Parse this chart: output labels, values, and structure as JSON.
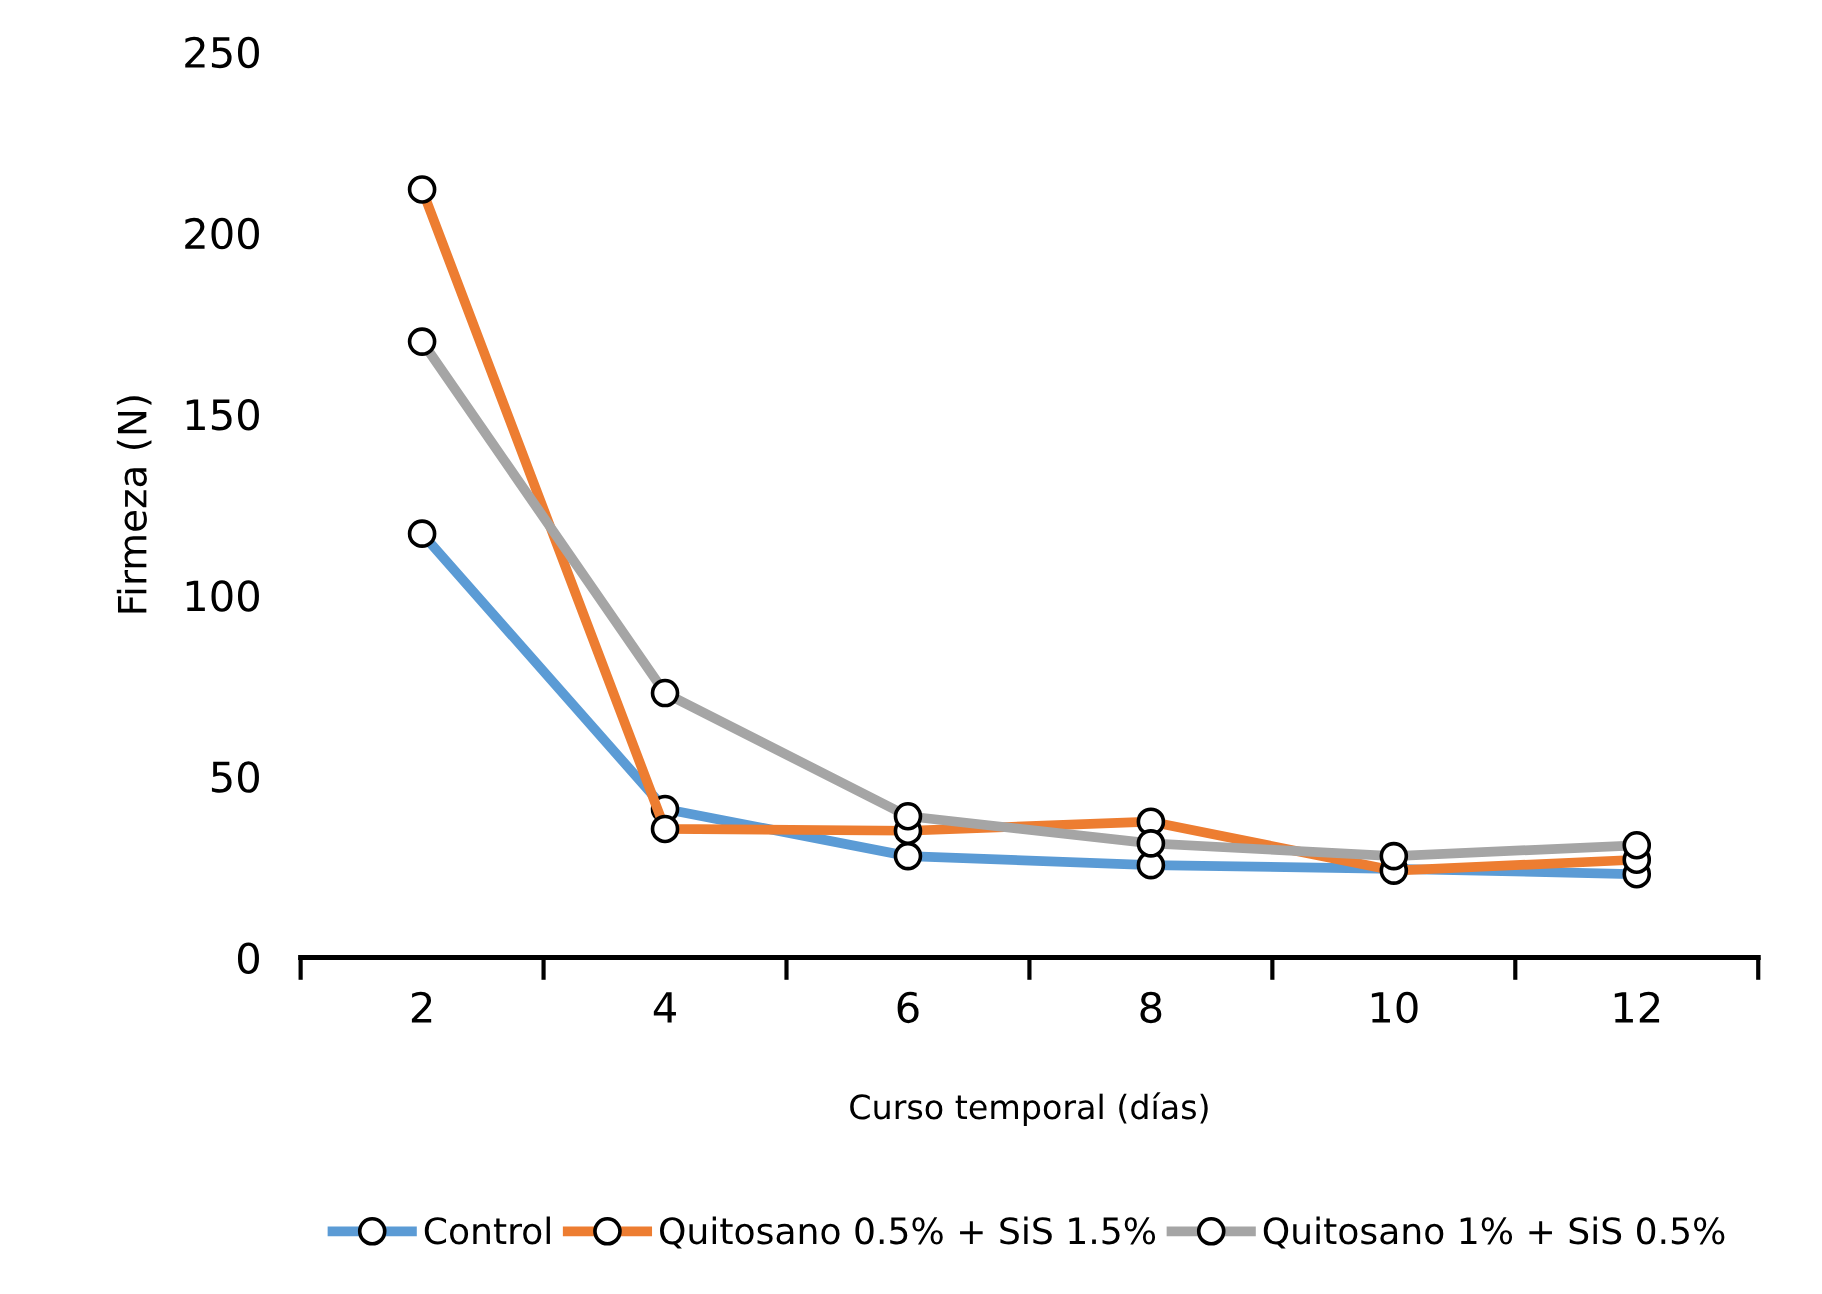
{
  "chart_data": {
    "type": "line",
    "xlabel": "Curso temporal (días)",
    "ylabel": "Firmeza (N)",
    "categories": [
      "2",
      "4",
      "6",
      "8",
      "10",
      "12"
    ],
    "series": [
      {
        "name": "Control",
        "color": "#5b9bd5",
        "values": [
          117,
          41,
          28,
          25.5,
          24.5,
          23
        ]
      },
      {
        "name": "Quitosano 0.5% + SiS 1.5%",
        "color": "#ed7d31",
        "values": [
          212,
          35.5,
          35,
          37.5,
          24,
          27
        ]
      },
      {
        "name": "Quitosano 1% + SiS 0.5%",
        "color": "#a5a5a5",
        "values": [
          170,
          73,
          39,
          31.5,
          28,
          31
        ]
      }
    ],
    "ylim": [
      0,
      250
    ],
    "yticks": [
      0,
      50,
      100,
      150,
      200,
      250
    ],
    "grid": false,
    "legend": "bottom",
    "marker": "circle",
    "line_style": "solid"
  }
}
